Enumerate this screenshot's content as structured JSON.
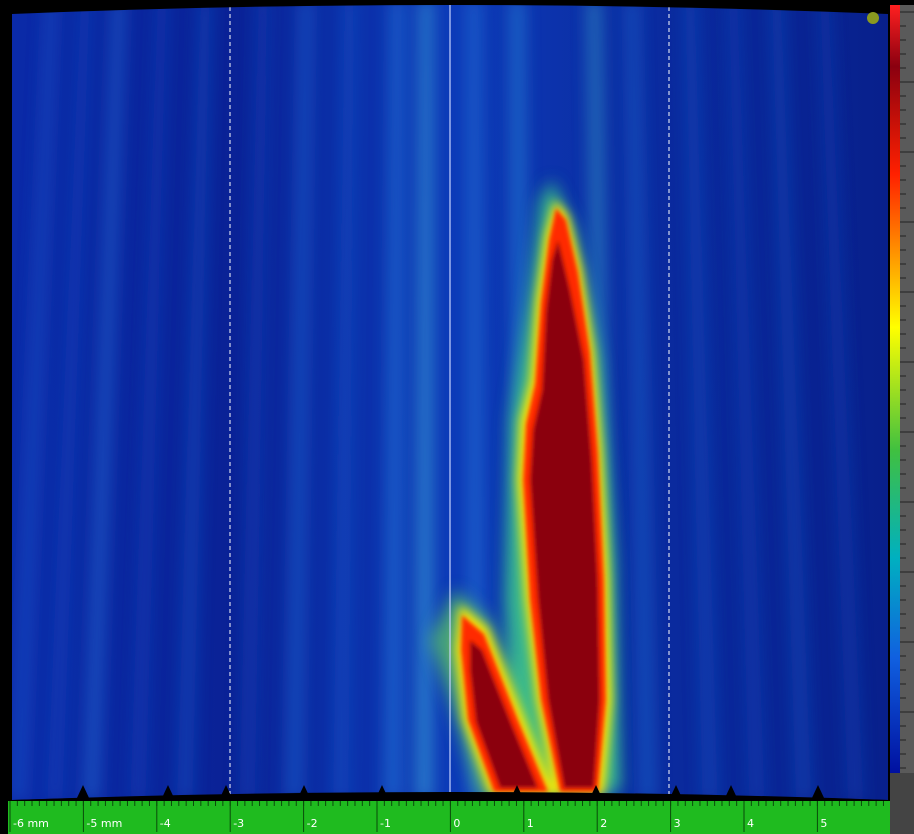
{
  "ruler": {
    "labels": [
      "-6 mm",
      "-5 mm",
      "-4",
      "-3",
      "-2",
      "-1",
      "0",
      "1",
      "2",
      "3",
      "4",
      "5"
    ]
  }
}
